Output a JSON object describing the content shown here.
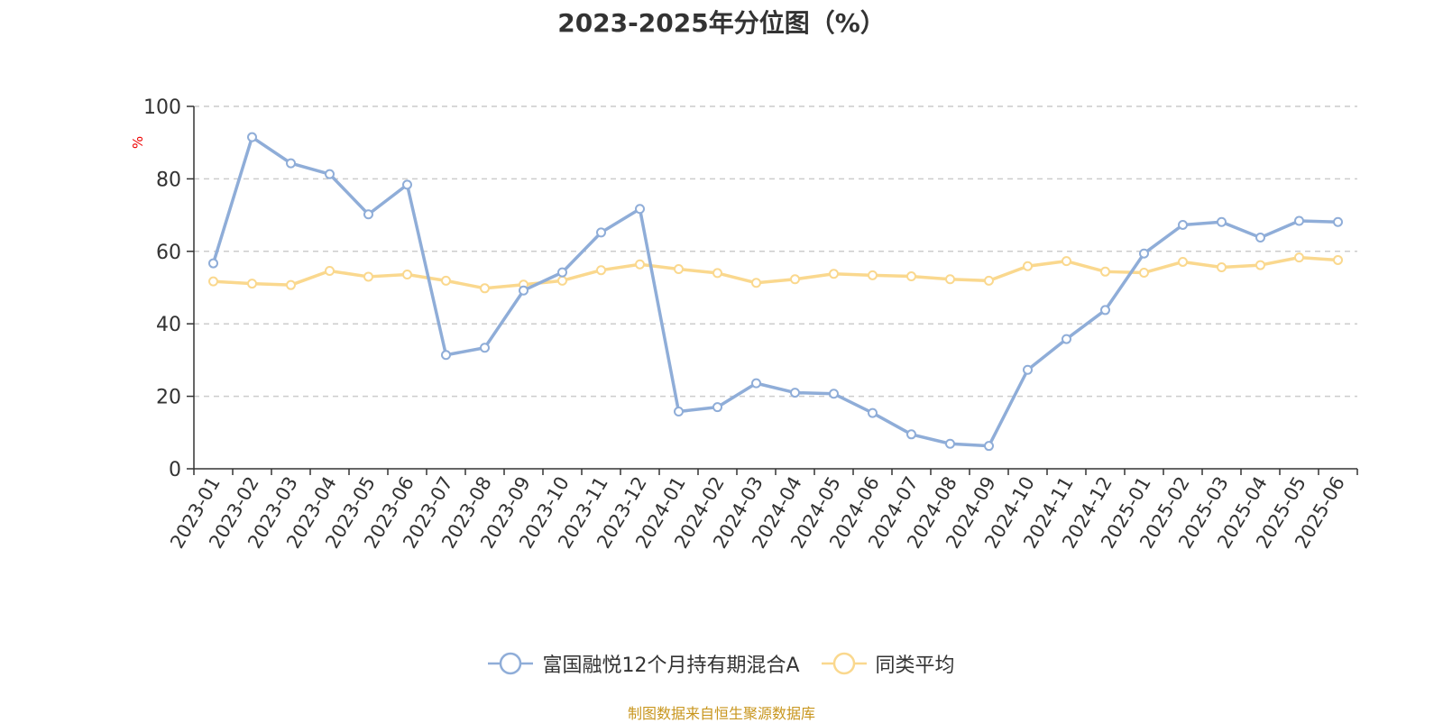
{
  "chart_data": {
    "type": "line",
    "title": "2023-2025年分位图（%）",
    "ylabel": "%",
    "xlabel": "",
    "ylim": [
      0,
      100
    ],
    "yticks": [
      0,
      20,
      40,
      60,
      80,
      100
    ],
    "grid": true,
    "legend_position": "bottom-center",
    "categories": [
      "2023-01",
      "2023-02",
      "2023-03",
      "2023-04",
      "2023-05",
      "2023-06",
      "2023-07",
      "2023-08",
      "2023-09",
      "2023-10",
      "2023-11",
      "2023-12",
      "2024-01",
      "2024-02",
      "2024-03",
      "2024-04",
      "2024-05",
      "2024-06",
      "2024-07",
      "2024-08",
      "2024-09",
      "2024-10",
      "2024-11",
      "2024-12",
      "2025-01",
      "2025-02",
      "2025-03",
      "2025-04",
      "2025-05",
      "2025-06"
    ],
    "series": [
      {
        "name": "富国融悦12个月持有期混合A",
        "color": "#8fadd8",
        "values": [
          56.7,
          91.5,
          84.3,
          81.3,
          70.2,
          78.4,
          31.4,
          33.4,
          49.2,
          54.2,
          65.2,
          71.7,
          15.8,
          17.0,
          23.6,
          21.0,
          20.7,
          15.4,
          9.5,
          6.9,
          6.3,
          27.3,
          35.8,
          43.8,
          59.4,
          67.3,
          68.1,
          63.8,
          68.4,
          68.1
        ]
      },
      {
        "name": "同类平均",
        "color": "#fad88e",
        "values": [
          51.7,
          51.1,
          50.7,
          54.6,
          53.0,
          53.6,
          51.9,
          49.8,
          50.8,
          51.9,
          54.8,
          56.4,
          55.1,
          54.0,
          51.3,
          52.3,
          53.8,
          53.4,
          53.1,
          52.3,
          51.9,
          55.9,
          57.3,
          54.4,
          54.1,
          57.1,
          55.6,
          56.2,
          58.3,
          57.6
        ]
      }
    ]
  },
  "source_note": "制图数据来自恒生聚源数据库"
}
